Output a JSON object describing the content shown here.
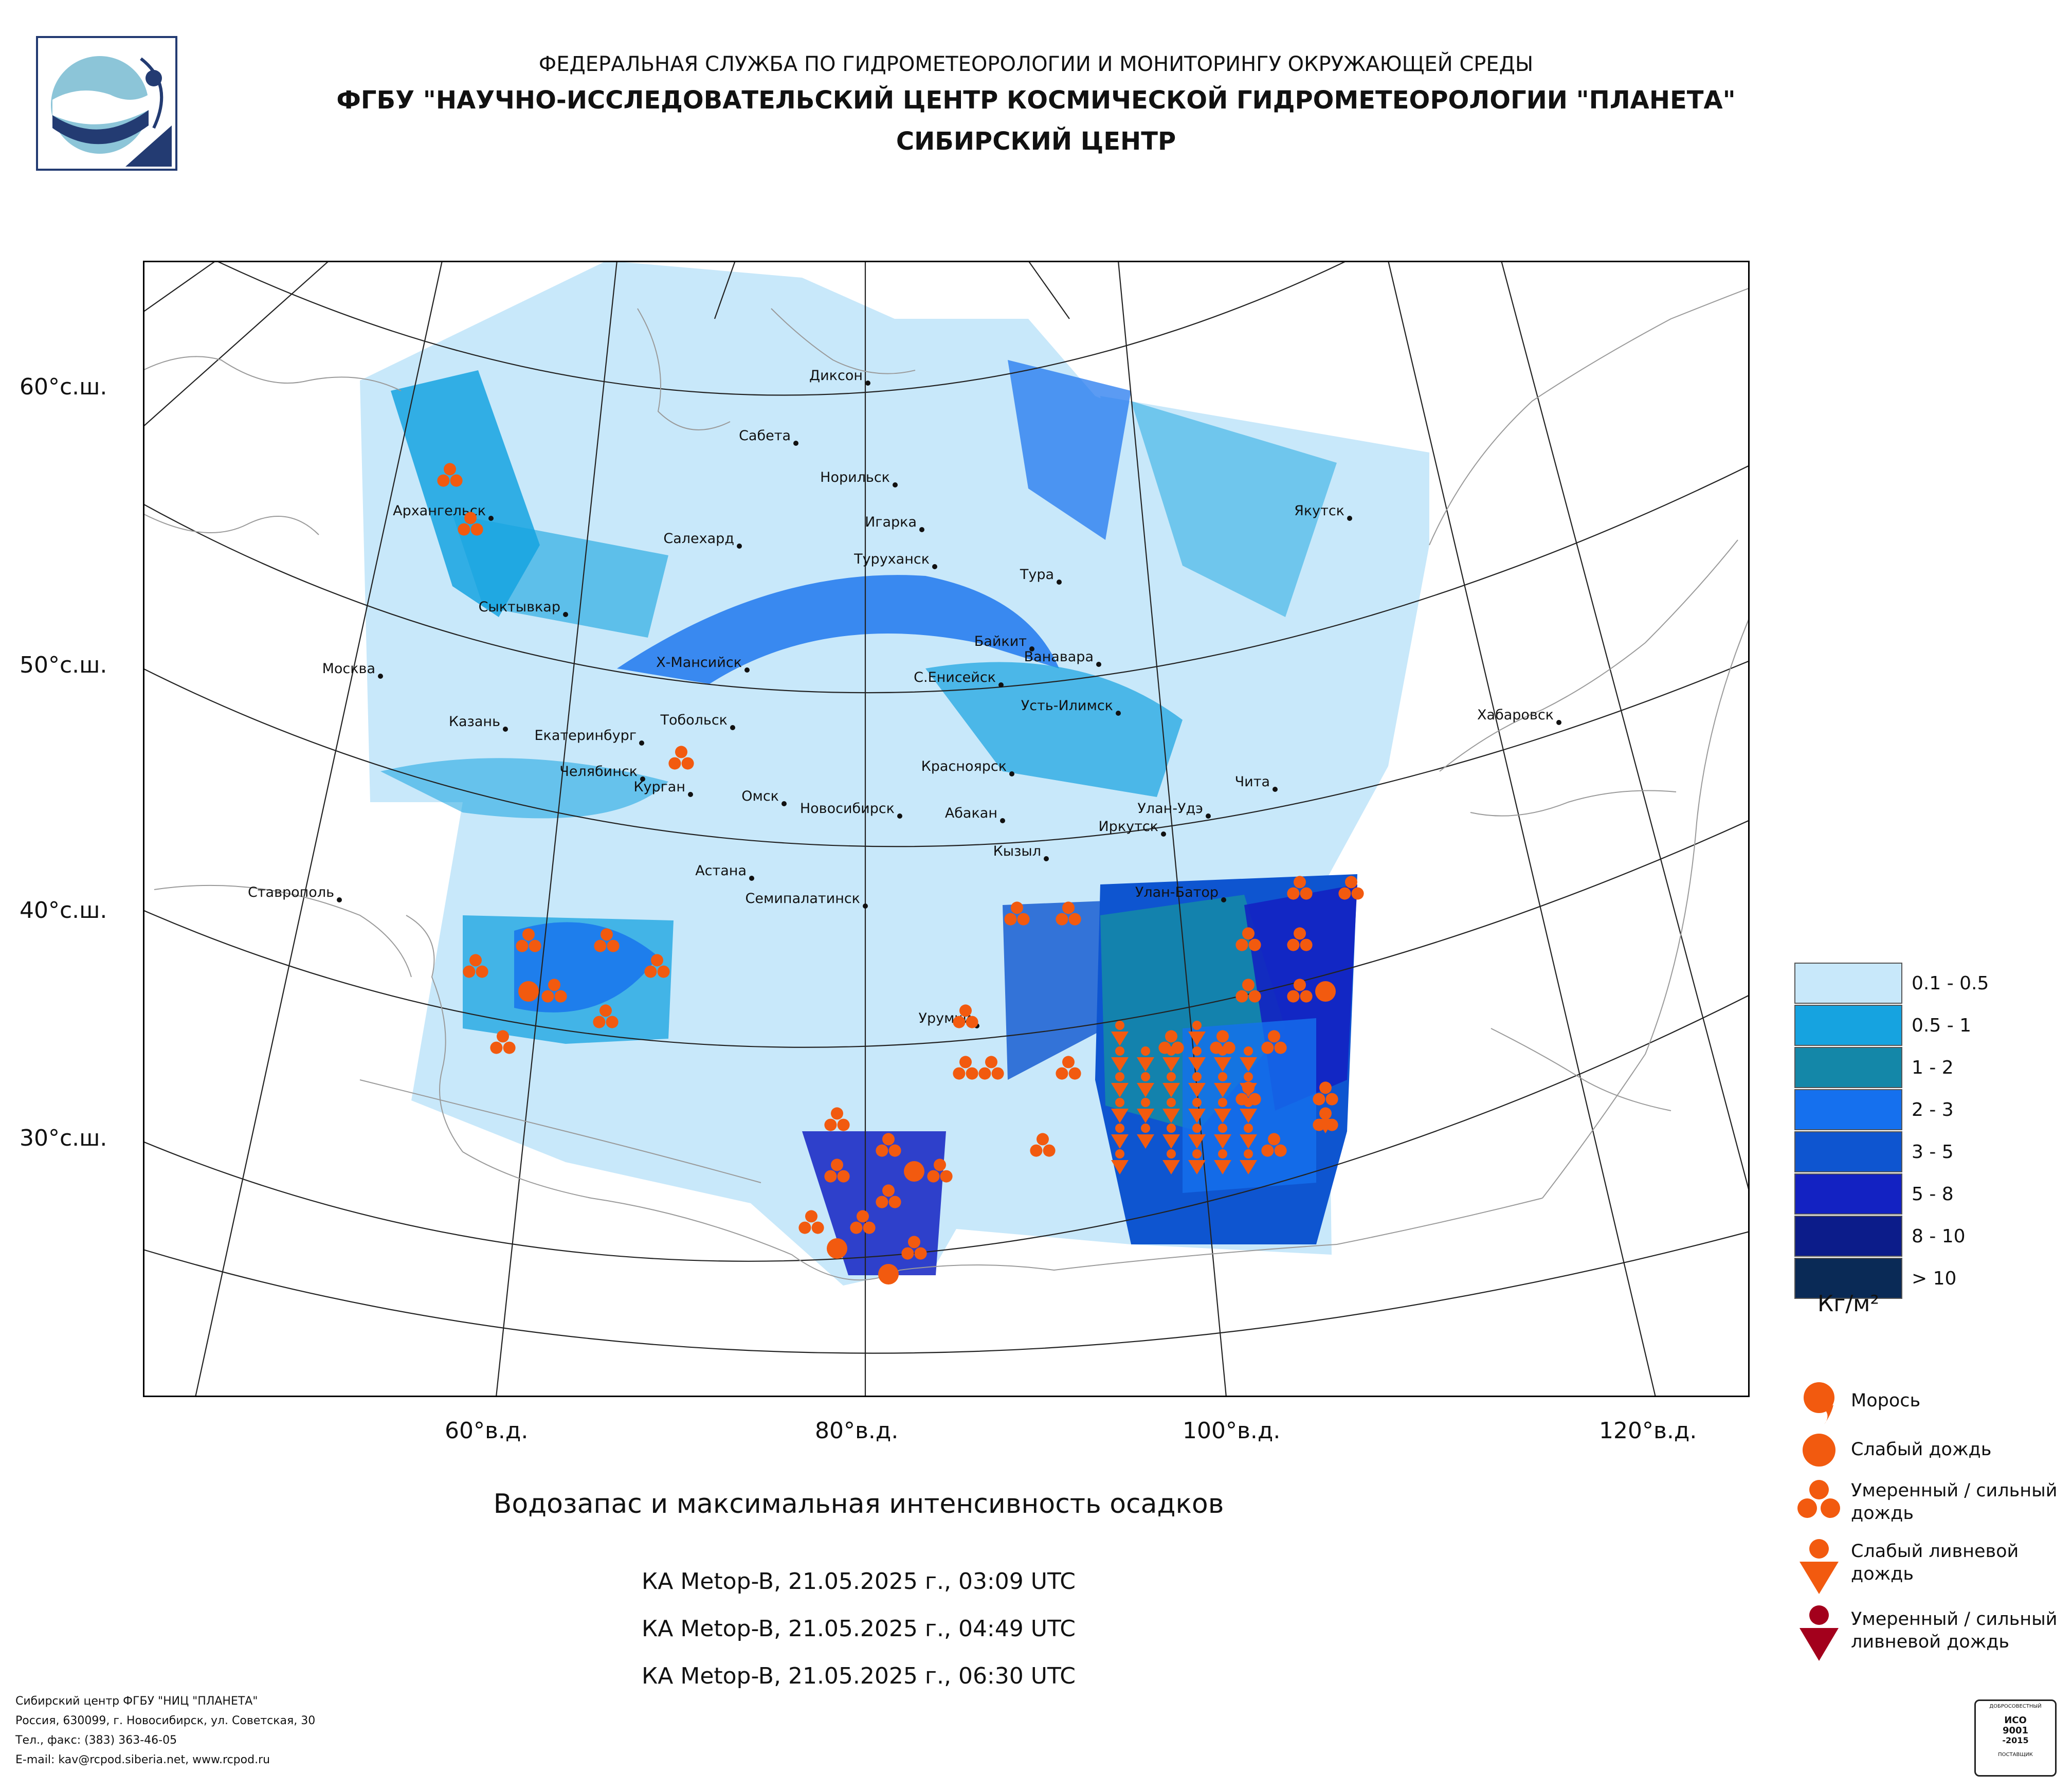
{
  "header": {
    "line1": "ФЕДЕРАЛЬНАЯ СЛУЖБА ПО ГИДРОМЕТЕОРОЛОГИИ И МОНИТОРИНГУ ОКРУЖАЮЩЕЙ СРЕДЫ",
    "line2": "ФГБУ \"НАУЧНО-ИССЛЕДОВАТЕЛЬСКИЙ ЦЕНТР КОСМИЧЕСКОЙ ГИДРОМЕТЕОРОЛОГИИ \"ПЛАНЕТА\"",
    "line3": "СИБИРСКИЙ ЦЕНТР"
  },
  "axes": {
    "lat": [
      "60°с.ш.",
      "50°с.ш.",
      "40°с.ш.",
      "30°с.ш."
    ],
    "lon": [
      "60°в.д.",
      "80°в.д.",
      "100°в.д.",
      "120°в.д."
    ]
  },
  "cities": [
    {
      "name": "Диксон"
    },
    {
      "name": "Сабета"
    },
    {
      "name": "Норильск"
    },
    {
      "name": "Игарка"
    },
    {
      "name": "Салехард"
    },
    {
      "name": "Архангельск"
    },
    {
      "name": "Туруханск"
    },
    {
      "name": "Тура"
    },
    {
      "name": "Якутск"
    },
    {
      "name": "Сыктывкар"
    },
    {
      "name": "Байкит"
    },
    {
      "name": "Ванавара"
    },
    {
      "name": "Москва"
    },
    {
      "name": "Х-Мансийск"
    },
    {
      "name": "С.Енисейск"
    },
    {
      "name": "Усть-Илимск"
    },
    {
      "name": "Казань"
    },
    {
      "name": "Тобольск"
    },
    {
      "name": "Хабаровск"
    },
    {
      "name": "Екатеринбург"
    },
    {
      "name": "Красноярск"
    },
    {
      "name": "Челябинск"
    },
    {
      "name": "Курган"
    },
    {
      "name": "Чита"
    },
    {
      "name": "Омск"
    },
    {
      "name": "Новосибирск"
    },
    {
      "name": "Абакан"
    },
    {
      "name": "Улан-Удэ"
    },
    {
      "name": "Иркутск"
    },
    {
      "name": "Кызыл"
    },
    {
      "name": "Астана"
    },
    {
      "name": "Ставрополь"
    },
    {
      "name": "Семипалатинск"
    },
    {
      "name": "Улан-Батор"
    },
    {
      "name": "Урумчи"
    }
  ],
  "legend": {
    "classes": [
      {
        "label": "0.1 - 0.5",
        "color": "#c8e8fa"
      },
      {
        "label": "0.5 - 1",
        "color": "#16a3e0"
      },
      {
        "label": "1 - 2",
        "color": "#1487a8"
      },
      {
        "label": "2 - 3",
        "color": "#1570ee"
      },
      {
        "label": "3 - 5",
        "color": "#0e55d0"
      },
      {
        "label": "5 - 8",
        "color": "#1322c2"
      },
      {
        "label": "8 - 10",
        "color": "#0c1c8a"
      },
      {
        "label": "> 10",
        "color": "#0a2a56"
      }
    ],
    "unit": "Кг/м²",
    "precip_types": [
      {
        "label": "Морось",
        "icon": "drizzle-icon",
        "color": "#f25a0f"
      },
      {
        "label": "Слабый дождь",
        "icon": "light-rain-icon",
        "color": "#f25a0f"
      },
      {
        "label": "Умеренный / сильный дождь",
        "icon": "moderate-rain-icon",
        "color": "#f25a0f"
      },
      {
        "label": "Слабый ливневой дождь",
        "icon": "light-shower-icon",
        "color": "#f25a0f"
      },
      {
        "label": "Умеренный / сильный ливневой дождь",
        "icon": "heavy-shower-icon",
        "color": "#a3001c"
      }
    ]
  },
  "caption": "Водозапас и максимальная интенсивность осадков",
  "passes": [
    "КА Metop-B, 21.05.2025 г., 03:09 UTC",
    "КА Metop-B, 21.05.2025 г., 04:49 UTC",
    "КА Metop-B, 21.05.2025 г., 06:30 UTC"
  ],
  "footer": [
    "Сибирский центр ФГБУ \"НИЦ \"ПЛАНЕТА\"",
    "Россия, 630099, г. Новосибирск, ул. Советская, 30",
    "Тел., факс: (383) 363-46-05",
    "E-mail: kav@rcpod.siberia.net, www.rcpod.ru"
  ],
  "iso_badge": {
    "top": "ДОБРОСОВЕСТНЫЙ",
    "mid1": "ИСО",
    "mid2": "9001",
    "mid3": "-2015",
    "bottom": "ПОСТАВЩИК"
  }
}
